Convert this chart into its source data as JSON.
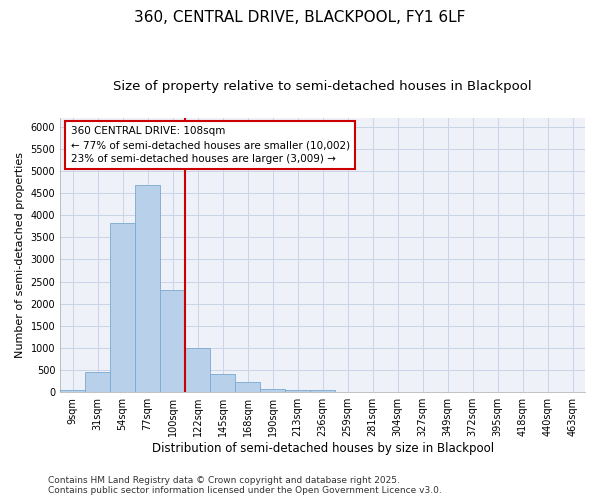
{
  "title1": "360, CENTRAL DRIVE, BLACKPOOL, FY1 6LF",
  "title2": "Size of property relative to semi-detached houses in Blackpool",
  "xlabel": "Distribution of semi-detached houses by size in Blackpool",
  "ylabel": "Number of semi-detached properties",
  "bar_labels": [
    "9sqm",
    "31sqm",
    "54sqm",
    "77sqm",
    "100sqm",
    "122sqm",
    "145sqm",
    "168sqm",
    "190sqm",
    "213sqm",
    "236sqm",
    "259sqm",
    "281sqm",
    "304sqm",
    "327sqm",
    "349sqm",
    "372sqm",
    "395sqm",
    "418sqm",
    "440sqm",
    "463sqm"
  ],
  "bar_values": [
    50,
    460,
    3820,
    4680,
    2300,
    1010,
    410,
    230,
    80,
    60,
    50,
    0,
    0,
    0,
    0,
    0,
    0,
    0,
    0,
    0,
    0
  ],
  "bar_color": "#b8d0ea",
  "bar_edge_color": "#7aaad0",
  "grid_color": "#c8d4e8",
  "background_color": "#ffffff",
  "plot_bg_color": "#eef2f8",
  "vline_x_index": 4,
  "vline_color": "#cc0000",
  "annotation_title": "360 CENTRAL DRIVE: 108sqm",
  "annotation_line1": "← 77% of semi-detached houses are smaller (10,002)",
  "annotation_line2": "23% of semi-detached houses are larger (3,009) →",
  "annotation_box_color": "#ffffff",
  "annotation_border_color": "#cc0000",
  "ylim": [
    0,
    6200
  ],
  "yticks": [
    0,
    500,
    1000,
    1500,
    2000,
    2500,
    3000,
    3500,
    4000,
    4500,
    5000,
    5500,
    6000
  ],
  "footnote1": "Contains HM Land Registry data © Crown copyright and database right 2025.",
  "footnote2": "Contains public sector information licensed under the Open Government Licence v3.0.",
  "title1_fontsize": 11,
  "title2_fontsize": 9.5,
  "xlabel_fontsize": 8.5,
  "ylabel_fontsize": 8,
  "tick_fontsize": 7,
  "annot_fontsize": 7.5,
  "footnote_fontsize": 6.5
}
